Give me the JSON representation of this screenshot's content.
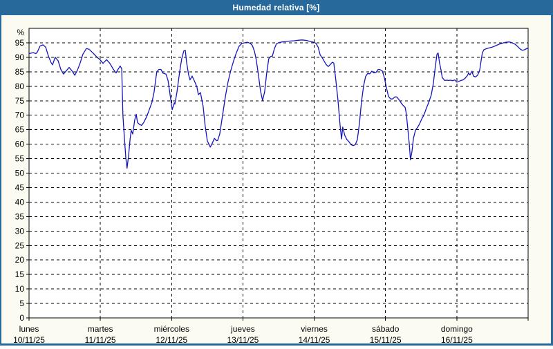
{
  "window": {
    "title": "Humedad relativa [%]"
  },
  "colors": {
    "titlebar_bg": "#27699B",
    "window_border": "#27699B",
    "background": "#FBFBF2",
    "plot_background": "#FFFFFF",
    "grid": "#000000",
    "frame": "#000000",
    "line": "#1515BE",
    "title_text": "#FFFFFF",
    "label_text": "#000000"
  },
  "chart_data": {
    "type": "line",
    "title": "Humedad relativa [%]",
    "ylabel": "%",
    "y_unit_label": "%",
    "ylim": [
      0,
      100
    ],
    "y_ticks": [
      0,
      5,
      10,
      15,
      20,
      25,
      30,
      35,
      40,
      45,
      50,
      55,
      60,
      65,
      70,
      75,
      80,
      85,
      90,
      95
    ],
    "xlim_hours": [
      0,
      168
    ],
    "grid": true,
    "legend_position": "none",
    "x_axis_days": [
      {
        "name": "lunes",
        "date": "10/11/25"
      },
      {
        "name": "martes",
        "date": "11/11/25"
      },
      {
        "name": "miércoles",
        "date": "12/11/25"
      },
      {
        "name": "jueves",
        "date": "13/11/25"
      },
      {
        "name": "viernes",
        "date": "14/11/25"
      },
      {
        "name": "sábado",
        "date": "15/11/25"
      },
      {
        "name": "domingo",
        "date": "16/11/25"
      }
    ],
    "series": [
      {
        "name": "Humedad relativa",
        "color": "#1515BE",
        "points": [
          [
            0,
            91.3
          ],
          [
            1.4,
            91.6
          ],
          [
            2.3,
            91.3
          ],
          [
            2.8,
            91.8
          ],
          [
            3.7,
            93.9
          ],
          [
            4.7,
            94.3
          ],
          [
            5.6,
            93.5
          ],
          [
            6.5,
            90.5
          ],
          [
            7.4,
            88.2
          ],
          [
            7.9,
            87.4
          ],
          [
            8.8,
            90
          ],
          [
            9.8,
            88.8
          ],
          [
            10.7,
            85.8
          ],
          [
            11.6,
            84.2
          ],
          [
            12.6,
            85.4
          ],
          [
            13.5,
            86.5
          ],
          [
            14.4,
            85.4
          ],
          [
            15.4,
            83.8
          ],
          [
            16.3,
            85.6
          ],
          [
            17.2,
            88
          ],
          [
            18.1,
            91
          ],
          [
            19.3,
            93
          ],
          [
            20.2,
            92.8
          ],
          [
            21.4,
            91.6
          ],
          [
            22.8,
            90.1
          ],
          [
            24,
            89.1
          ],
          [
            24.9,
            87.9
          ],
          [
            26.1,
            89.2
          ],
          [
            27.2,
            87.9
          ],
          [
            28.4,
            85.8
          ],
          [
            29.3,
            84.6
          ],
          [
            30,
            85.9
          ],
          [
            30.7,
            87
          ],
          [
            31.2,
            86
          ],
          [
            31.6,
            70
          ],
          [
            32.1,
            62
          ],
          [
            32.6,
            55
          ],
          [
            33,
            51.7
          ],
          [
            33.5,
            56
          ],
          [
            34,
            61.5
          ],
          [
            34.4,
            64.8
          ],
          [
            34.9,
            63.5
          ],
          [
            35.6,
            68.5
          ],
          [
            36.1,
            70.3
          ],
          [
            36.5,
            67.5
          ],
          [
            37.2,
            66.8
          ],
          [
            37.9,
            66.5
          ],
          [
            38.6,
            67.5
          ],
          [
            39.6,
            69.5
          ],
          [
            40.5,
            72
          ],
          [
            41.4,
            74.5
          ],
          [
            42.1,
            78
          ],
          [
            42.6,
            82
          ],
          [
            43,
            85
          ],
          [
            43.7,
            85.8
          ],
          [
            44.4,
            85.8
          ],
          [
            45.1,
            84.5
          ],
          [
            46.1,
            84.2
          ],
          [
            46.8,
            82
          ],
          [
            47.5,
            77
          ],
          [
            48.2,
            71.9
          ],
          [
            48.9,
            74.3
          ],
          [
            49.1,
            73.8
          ],
          [
            49.8,
            78
          ],
          [
            50.7,
            85
          ],
          [
            51.4,
            89.5
          ],
          [
            52.1,
            92.2
          ],
          [
            52.6,
            92.4
          ],
          [
            53,
            88.5
          ],
          [
            53.7,
            84
          ],
          [
            54.2,
            82.2
          ],
          [
            54.9,
            83.5
          ],
          [
            55.6,
            82
          ],
          [
            56.5,
            79.8
          ],
          [
            57,
            77.1
          ],
          [
            57.7,
            77.8
          ],
          [
            58.6,
            73.1
          ],
          [
            59.3,
            66.3
          ],
          [
            60,
            61.2
          ],
          [
            61,
            59
          ],
          [
            61.7,
            60.4
          ],
          [
            62.4,
            62
          ],
          [
            63.1,
            61.2
          ],
          [
            63.5,
            61.3
          ],
          [
            64.2,
            63.5
          ],
          [
            65.2,
            70.3
          ],
          [
            66.1,
            76.5
          ],
          [
            67,
            81.5
          ],
          [
            67.9,
            85.4
          ],
          [
            68.9,
            88.9
          ],
          [
            69.8,
            91.6
          ],
          [
            70.7,
            93.8
          ],
          [
            71.7,
            94.8
          ],
          [
            72.6,
            95
          ],
          [
            73.5,
            95.2
          ],
          [
            74.5,
            94.8
          ],
          [
            75.2,
            94
          ],
          [
            75.9,
            92
          ],
          [
            76.5,
            89
          ],
          [
            77.2,
            84
          ],
          [
            77.9,
            78.5
          ],
          [
            78.6,
            75.1
          ],
          [
            79.3,
            78
          ],
          [
            80,
            84.5
          ],
          [
            80.7,
            89.5
          ],
          [
            81.4,
            90.3
          ],
          [
            81.9,
            90.4
          ],
          [
            82.6,
            93
          ],
          [
            83.3,
            94.7
          ],
          [
            84.2,
            95.1
          ],
          [
            85.2,
            95.3
          ],
          [
            86.6,
            95.5
          ],
          [
            87.9,
            95.6
          ],
          [
            89.3,
            95.7
          ],
          [
            90.7,
            95.9
          ],
          [
            92.1,
            96
          ],
          [
            93.5,
            95.8
          ],
          [
            94.9,
            95.4
          ],
          [
            95.9,
            95.2
          ],
          [
            96.6,
            94.8
          ],
          [
            97.3,
            93.5
          ],
          [
            98,
            90.8
          ],
          [
            98.7,
            89.8
          ],
          [
            99.4,
            88.6
          ],
          [
            100,
            87.5
          ],
          [
            100.7,
            86.8
          ],
          [
            101.4,
            87.5
          ],
          [
            102.1,
            88.3
          ],
          [
            102.6,
            88
          ],
          [
            103.3,
            82
          ],
          [
            104,
            75
          ],
          [
            104.7,
            66.5
          ],
          [
            105.2,
            61.8
          ],
          [
            105.6,
            65.9
          ],
          [
            106.3,
            63
          ],
          [
            107,
            61.6
          ],
          [
            107.7,
            60.8
          ],
          [
            108.4,
            59.8
          ],
          [
            109.1,
            59.5
          ],
          [
            109.8,
            59.8
          ],
          [
            110.5,
            61.5
          ],
          [
            111.2,
            67
          ],
          [
            111.9,
            74.5
          ],
          [
            112.6,
            80
          ],
          [
            113.3,
            83.4
          ],
          [
            114,
            84.4
          ],
          [
            114.7,
            84.3
          ],
          [
            115.4,
            85.2
          ],
          [
            116.1,
            84.6
          ],
          [
            116.8,
            84.8
          ],
          [
            117.5,
            85.8
          ],
          [
            118.2,
            85.7
          ],
          [
            118.9,
            85.3
          ],
          [
            119.6,
            83
          ],
          [
            120.3,
            79.5
          ],
          [
            121,
            76.5
          ],
          [
            121.7,
            75.6
          ],
          [
            122.4,
            75.6
          ],
          [
            123.1,
            76.3
          ],
          [
            123.8,
            76.3
          ],
          [
            124.5,
            75.4
          ],
          [
            125.2,
            74.3
          ],
          [
            125.9,
            73.4
          ],
          [
            126.6,
            72.7
          ],
          [
            127,
            70.5
          ],
          [
            127.5,
            65.5
          ],
          [
            128,
            60
          ],
          [
            128.4,
            54.6
          ],
          [
            128.9,
            57.5
          ],
          [
            129.4,
            62
          ],
          [
            130.1,
            64.9
          ],
          [
            130.8,
            65.8
          ],
          [
            131.5,
            67.1
          ],
          [
            132.2,
            68.7
          ],
          [
            132.9,
            70
          ],
          [
            133.6,
            72
          ],
          [
            134.3,
            73.8
          ],
          [
            135,
            75.8
          ],
          [
            135.4,
            77
          ],
          [
            136.1,
            81
          ],
          [
            136.8,
            87
          ],
          [
            137.3,
            91
          ],
          [
            137.7,
            91.5
          ],
          [
            138.2,
            88
          ],
          [
            138.7,
            85.5
          ],
          [
            139.1,
            83
          ],
          [
            139.9,
            82
          ],
          [
            140.6,
            82.1
          ],
          [
            141.2,
            82
          ],
          [
            141.9,
            82.1
          ],
          [
            142.6,
            81.9
          ],
          [
            143.3,
            82.2
          ],
          [
            144,
            81.4
          ],
          [
            144.7,
            81.7
          ],
          [
            145.4,
            82
          ],
          [
            146.1,
            82.2
          ],
          [
            146.8,
            82.8
          ],
          [
            147.5,
            83.6
          ],
          [
            148,
            84.6
          ],
          [
            148.4,
            83.9
          ],
          [
            149.1,
            85.2
          ],
          [
            149.6,
            83.5
          ],
          [
            150.3,
            83.2
          ],
          [
            151,
            83.8
          ],
          [
            151.7,
            85.5
          ],
          [
            152.2,
            89
          ],
          [
            152.6,
            91.5
          ],
          [
            153.1,
            92.6
          ],
          [
            153.8,
            92.9
          ],
          [
            154.7,
            93.2
          ],
          [
            155.9,
            93.5
          ],
          [
            157.1,
            94
          ],
          [
            158.2,
            94.5
          ],
          [
            159.4,
            94.9
          ],
          [
            160.5,
            95.2
          ],
          [
            161.7,
            95.3
          ],
          [
            162.6,
            95
          ],
          [
            163.6,
            94.5
          ],
          [
            164.5,
            93.7
          ],
          [
            165.4,
            92.8
          ],
          [
            166.1,
            92.4
          ],
          [
            166.8,
            92.6
          ],
          [
            167.5,
            93
          ],
          [
            168,
            93.1
          ]
        ]
      }
    ]
  }
}
